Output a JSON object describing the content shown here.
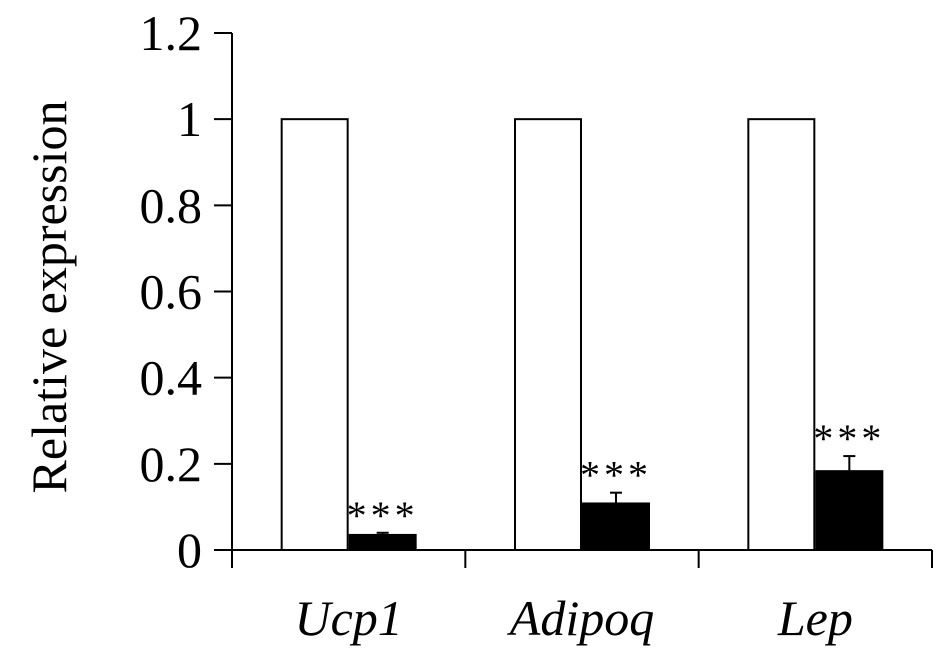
{
  "chart_data": {
    "type": "bar",
    "title": "",
    "xlabel": "",
    "ylabel": "Relative expression",
    "ylim": [
      0,
      1.2
    ],
    "yticks": [
      0,
      0.2,
      0.4,
      0.6,
      0.8,
      1,
      1.2
    ],
    "ytick_labels": [
      "0",
      "0.2",
      "0.4",
      "0.6",
      "0.8",
      "1",
      "1.2"
    ],
    "categories": [
      "Ucp1",
      "Adipoq",
      "Lep"
    ],
    "series": [
      {
        "values": [
          1,
          1,
          1
        ],
        "errors": [
          0,
          0,
          0
        ],
        "fill": "#ffffff",
        "stroke": "#000000"
      },
      {
        "values": [
          0.035,
          0.108,
          0.183
        ],
        "errors": [
          0.005,
          0.025,
          0.035
        ],
        "fill": "#000000",
        "stroke": "#000000"
      }
    ],
    "annotations": [
      "***",
      "***",
      "***"
    ],
    "grid": false,
    "legend": "none"
  }
}
